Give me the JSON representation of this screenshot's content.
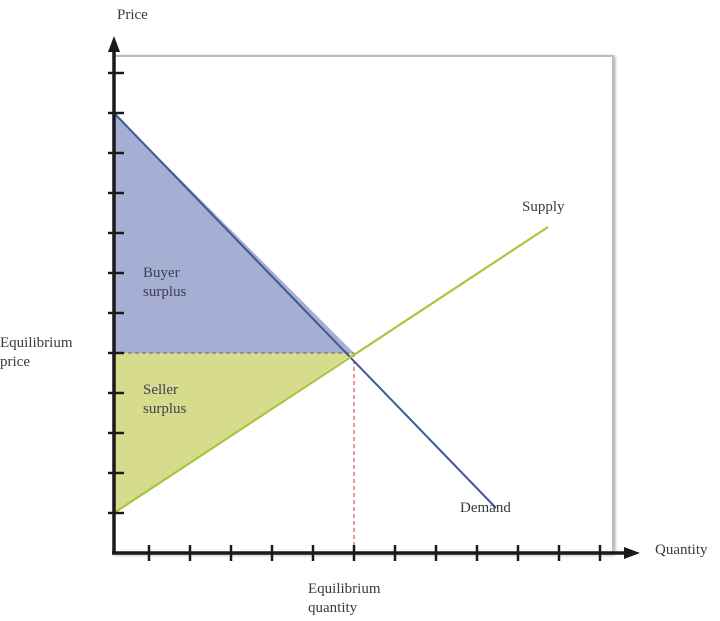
{
  "labels": {
    "y_axis": "Price",
    "x_axis": "Quantity",
    "supply": "Supply",
    "demand": "Demand",
    "eq_price_1": "Equilibrium",
    "eq_price_2": "price",
    "eq_qty_1": "Equilibrium",
    "eq_qty_2": "quantity",
    "buyer_1": "Buyer",
    "buyer_2": "surplus",
    "seller_1": "Seller",
    "seller_2": "surplus"
  },
  "colors": {
    "buyer_surplus_fill": "#a6aed3",
    "seller_surplus_fill": "#d7dc8c",
    "demand_line": "#3c5a98",
    "supply_line": "#a9c53c",
    "equilibrium_guide": "#d9534f",
    "axis": "#1a1a1a"
  }
}
